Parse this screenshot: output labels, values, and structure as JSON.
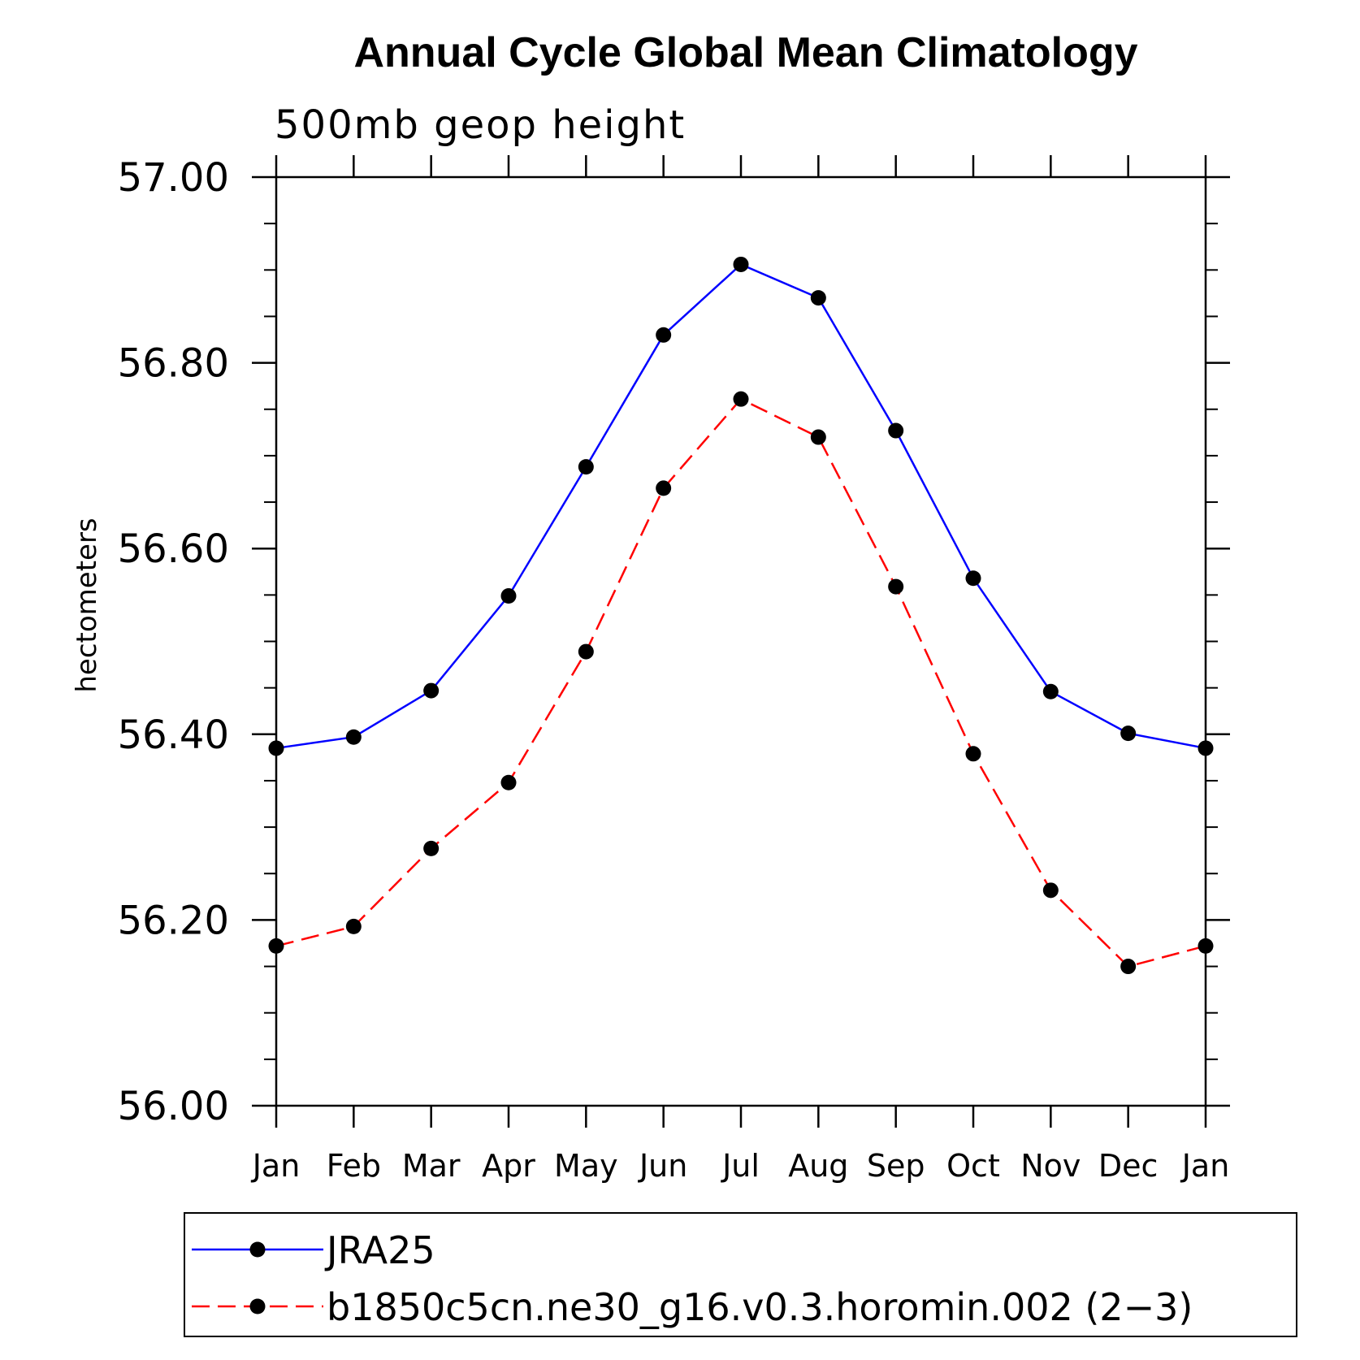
{
  "chart_data": {
    "type": "line",
    "title": "Annual Cycle Global Mean Climatology",
    "subtitle": "500mb geop height",
    "xlabel": "",
    "ylabel": "hectometers",
    "categories": [
      "Jan",
      "Feb",
      "Mar",
      "Apr",
      "May",
      "Jun",
      "Jul",
      "Aug",
      "Sep",
      "Oct",
      "Nov",
      "Dec",
      "Jan"
    ],
    "ylim": [
      56.0,
      57.0
    ],
    "yticks": [
      "57.00",
      "56.80",
      "56.60",
      "56.40",
      "56.20",
      "56.00"
    ],
    "ytick_values": [
      57.0,
      56.8,
      56.6,
      56.4,
      56.2,
      56.0
    ],
    "grid": false,
    "legend_position": "bottom",
    "series": [
      {
        "name": "JRA25",
        "color": "#0000ff",
        "line_style": "solid",
        "marker": "filled-circle",
        "values": [
          56.385,
          56.397,
          56.447,
          56.549,
          56.688,
          56.83,
          56.906,
          56.87,
          56.727,
          56.568,
          56.446,
          56.401,
          56.385
        ]
      },
      {
        "name": "b1850c5cn.ne30_g16.v0.3.horomin.002 (2−3)",
        "color": "#ff0000",
        "line_style": "dashed",
        "marker": "filled-circle",
        "values": [
          56.172,
          56.193,
          56.277,
          56.348,
          56.489,
          56.665,
          56.761,
          56.72,
          56.559,
          56.379,
          56.232,
          56.15,
          56.172
        ]
      }
    ]
  }
}
